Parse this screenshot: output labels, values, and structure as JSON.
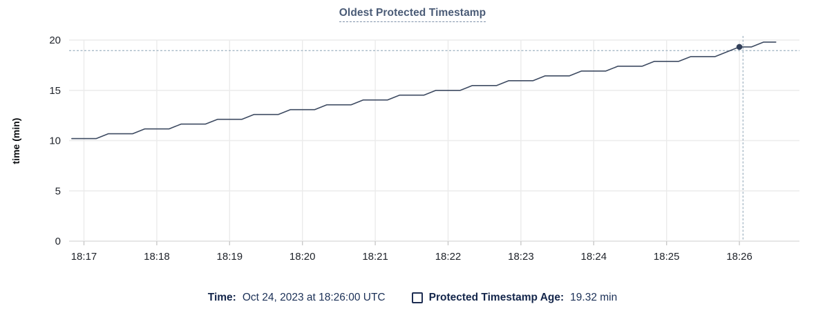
{
  "header": {
    "title": "Oldest Protected Timestamp"
  },
  "legend": {
    "time_label": "Time:",
    "time_value": "Oct 24, 2023 at 18:26:00 UTC",
    "series_label": "Protected Timestamp Age:",
    "series_value": "19.32 min",
    "checkbox_checked": false
  },
  "cursor": {
    "snap_time": "18:26:00",
    "snap_value": 19.32,
    "hover_time": "18:26:03",
    "hover_value": 18.95
  },
  "colors": {
    "line": "#3d4a61",
    "dot": "#32405a",
    "grid": "#ebebeb",
    "axis_baseline": "#dedede",
    "tick_stub": "#c9c9c9",
    "tick_text": "#20242b",
    "axis_title_text": "#0b0d10",
    "crosshair": "#9fb2c1",
    "title_text": "#4a5b76",
    "legend_text": "#16294f"
  },
  "chart_data": {
    "type": "line",
    "title": "Oldest Protected Timestamp",
    "xlabel": "",
    "ylabel": "time (min)",
    "ylim": [
      0,
      20
    ],
    "yticks": [
      0,
      5,
      10,
      15,
      20
    ],
    "xticks": [
      "18:17",
      "18:18",
      "18:19",
      "18:20",
      "18:21",
      "18:22",
      "18:23",
      "18:24",
      "18:25",
      "18:26"
    ],
    "grid": true,
    "legend_position": "bottom",
    "x": [
      "18:16:50",
      "18:17:00",
      "18:17:10",
      "18:17:20",
      "18:17:30",
      "18:17:40",
      "18:17:50",
      "18:18:00",
      "18:18:10",
      "18:18:20",
      "18:18:30",
      "18:18:40",
      "18:18:50",
      "18:19:00",
      "18:19:10",
      "18:19:20",
      "18:19:30",
      "18:19:40",
      "18:19:50",
      "18:20:00",
      "18:20:10",
      "18:20:20",
      "18:20:30",
      "18:20:40",
      "18:20:50",
      "18:21:00",
      "18:21:10",
      "18:21:20",
      "18:21:30",
      "18:21:40",
      "18:21:50",
      "18:22:00",
      "18:22:10",
      "18:22:20",
      "18:22:30",
      "18:22:40",
      "18:22:50",
      "18:23:00",
      "18:23:10",
      "18:23:20",
      "18:23:30",
      "18:23:40",
      "18:23:50",
      "18:24:00",
      "18:24:10",
      "18:24:20",
      "18:24:30",
      "18:24:40",
      "18:24:50",
      "18:25:00",
      "18:25:10",
      "18:25:20",
      "18:25:30",
      "18:25:40",
      "18:25:50",
      "18:26:00",
      "18:26:10",
      "18:26:20",
      "18:26:30"
    ],
    "series": [
      {
        "name": "Protected Timestamp Age",
        "values": [
          10.2,
          10.2,
          10.2,
          10.68,
          10.68,
          10.68,
          11.16,
          11.16,
          11.16,
          11.64,
          11.64,
          11.64,
          12.12,
          12.12,
          12.12,
          12.6,
          12.6,
          12.6,
          13.08,
          13.08,
          13.08,
          13.56,
          13.56,
          13.56,
          14.04,
          14.04,
          14.04,
          14.52,
          14.52,
          14.52,
          15.0,
          15.0,
          15.0,
          15.48,
          15.48,
          15.48,
          15.96,
          15.96,
          15.96,
          16.44,
          16.44,
          16.44,
          16.92,
          16.92,
          16.92,
          17.4,
          17.4,
          17.4,
          17.88,
          17.88,
          17.88,
          18.36,
          18.36,
          18.36,
          18.84,
          19.32,
          19.32,
          19.8,
          19.8
        ]
      }
    ]
  }
}
